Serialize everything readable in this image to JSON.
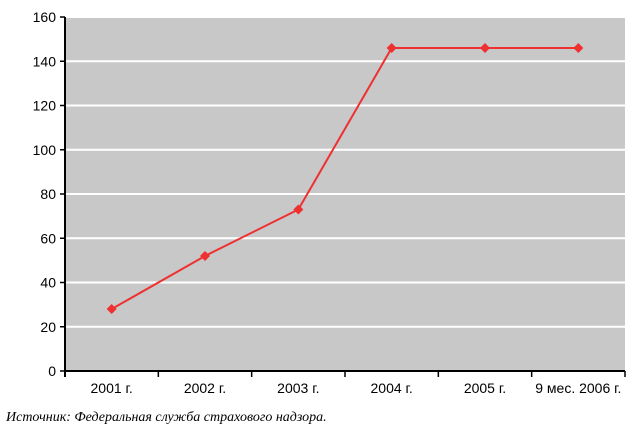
{
  "chart_data": {
    "type": "line",
    "categories": [
      "2001 г.",
      "2002 г.",
      "2003 г.",
      "2004 г.",
      "2005 г.",
      "9 мес. 2006 г."
    ],
    "series": [
      {
        "values": [
          28,
          52,
          73,
          146,
          146,
          146
        ]
      }
    ],
    "title": "",
    "xlabel": "",
    "ylabel": "",
    "ylim": [
      0,
      160
    ],
    "yticks": [
      0,
      20,
      40,
      60,
      80,
      100,
      120,
      140,
      160
    ],
    "grid": true,
    "legend": "none",
    "colors": {
      "plot_background": "#c8c8c8",
      "gridline": "#ffffff",
      "series_line": "#ee3030",
      "axis": "#000000"
    }
  },
  "source_note": "Источник: Федеральная служба страхового надзора."
}
